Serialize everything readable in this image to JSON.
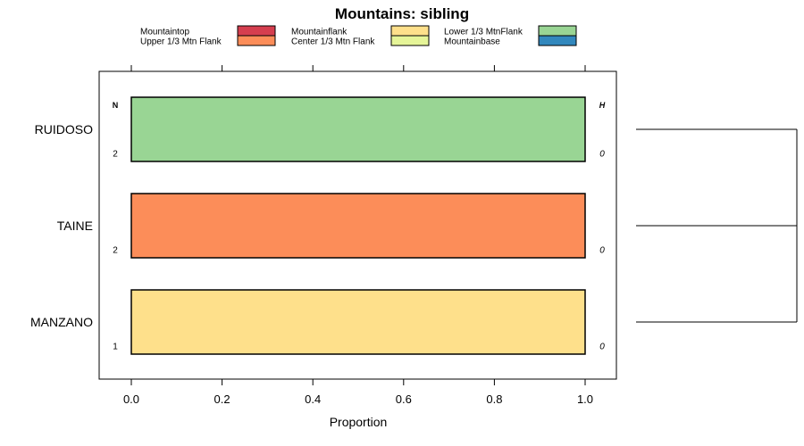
{
  "chart_data": {
    "type": "bar",
    "orientation": "horizontal",
    "stacked": true,
    "title": "Mountains: sibling",
    "xlabel": "Proportion",
    "ylabel": "",
    "xlim": [
      0,
      1
    ],
    "xticks": [
      "0.0",
      "0.2",
      "0.4",
      "0.6",
      "0.8",
      "1.0"
    ],
    "categories": [
      "RUIDOSO",
      "TAINE",
      "MANZANO"
    ],
    "legend": [
      {
        "name": "Mountaintop",
        "color": "#d53e4f"
      },
      {
        "name": "Mountainflank",
        "color": "#fee08b"
      },
      {
        "name": "Lower 1/3 MtnFlank",
        "color": "#99d594"
      },
      {
        "name": "Upper 1/3 Mtn Flank",
        "color": "#fc8d59"
      },
      {
        "name": "Center 1/3 Mtn Flank",
        "color": "#e6f598"
      },
      {
        "name": "Mountainbase",
        "color": "#3288bd"
      }
    ],
    "series": [
      {
        "name": "Mountaintop",
        "values": [
          0,
          0,
          0
        ]
      },
      {
        "name": "Upper 1/3 Mtn Flank",
        "values": [
          0,
          1,
          0
        ]
      },
      {
        "name": "Mountainflank",
        "values": [
          0,
          0,
          1
        ]
      },
      {
        "name": "Center 1/3 Mtn Flank",
        "values": [
          0,
          0,
          0
        ]
      },
      {
        "name": "Lower 1/3 MtnFlank",
        "values": [
          1,
          0,
          0
        ]
      },
      {
        "name": "Mountainbase",
        "values": [
          0,
          0,
          0
        ]
      }
    ],
    "n_header": "N",
    "h_header": "H",
    "n_values": [
      "2",
      "2",
      "1"
    ],
    "h_values": [
      "0",
      "0",
      "0"
    ],
    "dendrogram": "present"
  }
}
